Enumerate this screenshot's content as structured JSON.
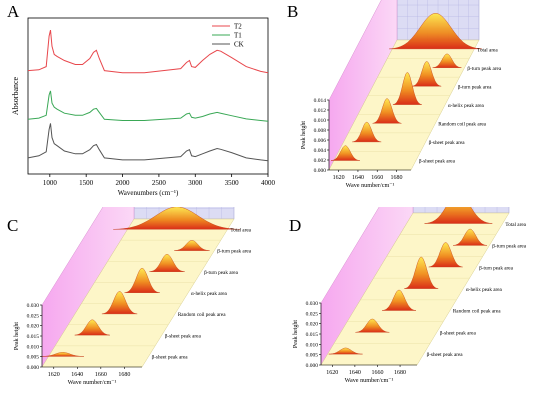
{
  "panels": [
    "A",
    "B",
    "C",
    "D"
  ],
  "chart_data": [
    {
      "panel": "A",
      "type": "line",
      "xlabel": "Wavenumbers (cm⁻¹)",
      "ylabel": "Absorbance",
      "x_ticks": [
        "1000",
        "1500",
        "2000",
        "2500",
        "3000",
        "3500",
        "4000"
      ],
      "xlim": [
        700,
        4000
      ],
      "legend_position": "top-right",
      "series": [
        {
          "name": "T2",
          "color": "#e8474c",
          "offset": 2.1,
          "x": [
            700,
            850,
            950,
            990,
            1010,
            1030,
            1060,
            1100,
            1200,
            1350,
            1450,
            1550,
            1600,
            1640,
            1680,
            1750,
            2000,
            2300,
            2800,
            2880,
            2920,
            2950,
            3000,
            3100,
            3200,
            3300,
            3350,
            3500,
            3700,
            3900,
            4000
          ],
          "y": [
            0.3,
            0.32,
            0.4,
            1.15,
            1.3,
            0.9,
            0.7,
            0.65,
            0.55,
            0.45,
            0.45,
            0.6,
            0.75,
            0.8,
            0.6,
            0.3,
            0.25,
            0.25,
            0.35,
            0.5,
            0.55,
            0.4,
            0.38,
            0.55,
            0.7,
            0.8,
            0.78,
            0.62,
            0.4,
            0.28,
            0.25
          ]
        },
        {
          "name": "T1",
          "color": "#3aa856",
          "offset": 1.05,
          "x": [
            700,
            850,
            950,
            990,
            1010,
            1030,
            1060,
            1100,
            1200,
            1350,
            1450,
            1550,
            1600,
            1640,
            1680,
            1750,
            2000,
            2300,
            2800,
            2880,
            2920,
            2950,
            3000,
            3100,
            3200,
            3300,
            3350,
            3500,
            3700,
            3900,
            4000
          ],
          "y": [
            0.15,
            0.18,
            0.25,
            0.75,
            0.85,
            0.55,
            0.45,
            0.4,
            0.3,
            0.25,
            0.25,
            0.32,
            0.4,
            0.42,
            0.32,
            0.15,
            0.12,
            0.12,
            0.18,
            0.28,
            0.3,
            0.2,
            0.18,
            0.22,
            0.28,
            0.32,
            0.3,
            0.24,
            0.16,
            0.12,
            0.1
          ]
        },
        {
          "name": "CK",
          "color": "#555555",
          "offset": 0.0,
          "x": [
            700,
            850,
            950,
            990,
            1010,
            1030,
            1060,
            1100,
            1200,
            1350,
            1450,
            1550,
            1600,
            1640,
            1680,
            1750,
            2000,
            2300,
            2800,
            2880,
            2920,
            2950,
            3000,
            3100,
            3200,
            3300,
            3350,
            3500,
            3700,
            3900,
            4000
          ],
          "y": [
            0.25,
            0.3,
            0.4,
            0.95,
            1.1,
            0.75,
            0.6,
            0.55,
            0.42,
            0.35,
            0.35,
            0.45,
            0.55,
            0.58,
            0.45,
            0.25,
            0.2,
            0.2,
            0.28,
            0.42,
            0.45,
            0.3,
            0.28,
            0.35,
            0.42,
            0.48,
            0.46,
            0.38,
            0.25,
            0.2,
            0.18
          ]
        }
      ]
    },
    {
      "panel": "B",
      "type": "area",
      "xlabel": "Wave number/cm⁻¹",
      "ylabel": "Peak height",
      "x_ticks": [
        "1620",
        "1640",
        "1660",
        "1680"
      ],
      "y_ticks": [
        "0.000",
        "0.002",
        "0.004",
        "0.006",
        "0.008",
        "0.010",
        "0.012",
        "0.014"
      ],
      "ylim": [
        0,
        0.014
      ],
      "series": [
        {
          "name": "β-sheet peak area",
          "center": 1622,
          "width": 5,
          "height": 0.003
        },
        {
          "name": "β-sheet peak area",
          "center": 1634,
          "width": 5,
          "height": 0.004
        },
        {
          "name": "Random coil peak area",
          "center": 1645,
          "width": 5,
          "height": 0.005
        },
        {
          "name": "α-helix peak area",
          "center": 1656,
          "width": 5,
          "height": 0.0065
        },
        {
          "name": "β-turn peak area",
          "center": 1666,
          "width": 5,
          "height": 0.005
        },
        {
          "name": "β-turn peak area",
          "center": 1677,
          "width": 5,
          "height": 0.0028
        },
        {
          "name": "Total area",
          "center": 1655,
          "width": 16,
          "height": 0.0072
        }
      ]
    },
    {
      "panel": "C",
      "type": "area",
      "xlabel": "Wave number/cm⁻¹",
      "ylabel": "Peak height",
      "x_ticks": [
        "1620",
        "1640",
        "1660",
        "1680"
      ],
      "y_ticks": [
        "0.000",
        "0.005",
        "0.010",
        "0.015",
        "0.020",
        "0.025",
        "0.030"
      ],
      "ylim": [
        0,
        0.03
      ],
      "series": [
        {
          "name": "β-sheet peak area",
          "center": 1622,
          "width": 6,
          "height": 0.002
        },
        {
          "name": "β-sheet peak area",
          "center": 1636,
          "width": 5,
          "height": 0.0075
        },
        {
          "name": "Random coil peak area",
          "center": 1648,
          "width": 5,
          "height": 0.011
        },
        {
          "name": "α-helix peak area",
          "center": 1656,
          "width": 5,
          "height": 0.012
        },
        {
          "name": "β-turn peak area",
          "center": 1666,
          "width": 5,
          "height": 0.0085
        },
        {
          "name": "β-turn peak area",
          "center": 1676,
          "width": 5,
          "height": 0.005
        },
        {
          "name": "Total area",
          "center": 1652,
          "width": 18,
          "height": 0.011
        }
      ]
    },
    {
      "panel": "D",
      "type": "area",
      "xlabel": "Wave number/cm⁻¹",
      "ylabel": "Peak height",
      "x_ticks": [
        "1620",
        "1640",
        "1660",
        "1680"
      ],
      "y_ticks": [
        "0.000",
        "0.005",
        "0.010",
        "0.015",
        "0.020",
        "0.025",
        "0.030"
      ],
      "ylim": [
        0,
        0.03
      ],
      "series": [
        {
          "name": "β-sheet peak area",
          "center": 1626,
          "width": 5,
          "height": 0.003
        },
        {
          "name": "β-sheet peak area",
          "center": 1638,
          "width": 5,
          "height": 0.0065
        },
        {
          "name": "Random coil peak area",
          "center": 1650,
          "width": 5,
          "height": 0.01
        },
        {
          "name": "α-helix peak area",
          "center": 1658,
          "width": 5,
          "height": 0.0155
        },
        {
          "name": "β-turn peak area",
          "center": 1668,
          "width": 5,
          "height": 0.012
        },
        {
          "name": "β-turn peak area",
          "center": 1678,
          "width": 5,
          "height": 0.008
        },
        {
          "name": "Total area",
          "center": 1656,
          "width": 10,
          "height": 0.015
        }
      ]
    }
  ]
}
